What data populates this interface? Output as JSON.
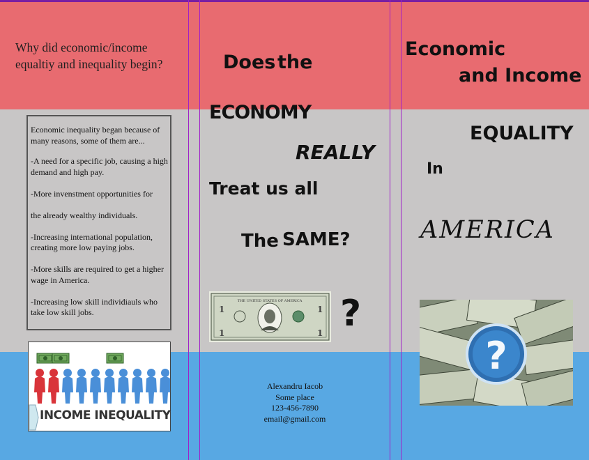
{
  "left_panel": {
    "question": "Why did economic/income equaltiy and inequality begin?",
    "reasons": [
      "Economic inequality began because of many reasons, some of them are...",
      "-A need for a specific job, causing a high demand and high pay.",
      "-More invenstment opportunities for",
      "the already wealthy individuals.",
      "-Increasing international population, creating more low paying jobs.",
      "-More skills are required to get a higher wage in America.",
      "-Increasing low skill individiauls who take low skill jobs."
    ],
    "graphic_caption": "INCOME INEQUALITY"
  },
  "middle_panel": {
    "line1_a": "Does",
    "line1_b": "the",
    "line2": "ECONOMY",
    "line3": "REALLY",
    "line4": "Treat us all",
    "line5_a": "The",
    "line5_b": "SAME?",
    "question_mark": "?",
    "bill_text": "THE UNITED STATES OF AMERICA",
    "contact": {
      "name": "Alexandru Iacob",
      "place": "Some place",
      "phone": "123-456-7890",
      "email": "email@gmail.com"
    }
  },
  "right_panel": {
    "title_1": "Economic",
    "title_2": "and Income",
    "title_3": "EQUALITY",
    "title_4": "In",
    "title_5": "AMERICA",
    "image_symbol": "?"
  },
  "colors": {
    "top_band": "#e86b70",
    "middle_band": "#c8c6c6",
    "bottom_band": "#58a8e3",
    "guide_lines": "#a020c8"
  }
}
